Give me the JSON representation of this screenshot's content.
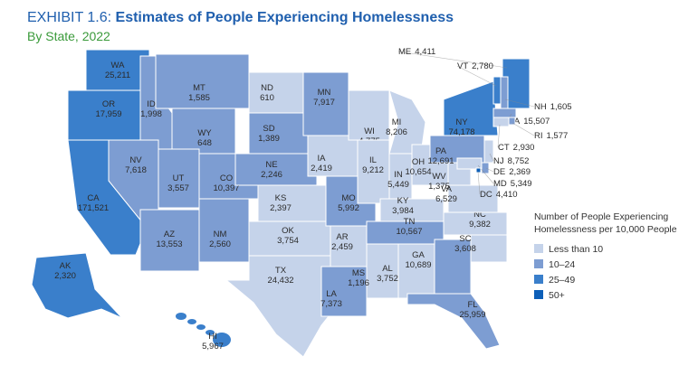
{
  "header": {
    "prefix": "EXHIBIT 1.6:",
    "title": "Estimates of People Experiencing Homelessness",
    "subtitle": "By State, 2022"
  },
  "legend": {
    "title_lines": [
      "Number of People Experiencing",
      "Homelessness per 10,000 People"
    ],
    "items": [
      {
        "label": "Less than 10",
        "color": "#c5d3ea"
      },
      {
        "label": "10–24",
        "color": "#7d9dd2"
      },
      {
        "label": "25–49",
        "color": "#3a7fcb"
      },
      {
        "label": "50+",
        "color": "#0d5fb8"
      }
    ]
  },
  "states": [
    {
      "abbr": "WA",
      "value": "25,211",
      "color": "#3a7fcb"
    },
    {
      "abbr": "OR",
      "value": "17,959",
      "color": "#3a7fcb"
    },
    {
      "abbr": "CA",
      "value": "171,521",
      "color": "#3a7fcb"
    },
    {
      "abbr": "ID",
      "value": "1,998",
      "color": "#7d9dd2"
    },
    {
      "abbr": "MT",
      "value": "1,585",
      "color": "#7d9dd2"
    },
    {
      "abbr": "WY",
      "value": "648",
      "color": "#7d9dd2"
    },
    {
      "abbr": "NV",
      "value": "7,618",
      "color": "#7d9dd2"
    },
    {
      "abbr": "UT",
      "value": "3,557",
      "color": "#7d9dd2"
    },
    {
      "abbr": "CO",
      "value": "10,397",
      "color": "#7d9dd2"
    },
    {
      "abbr": "AZ",
      "value": "13,553",
      "color": "#7d9dd2"
    },
    {
      "abbr": "NM",
      "value": "2,560",
      "color": "#7d9dd2"
    },
    {
      "abbr": "ND",
      "value": "610",
      "color": "#c5d3ea"
    },
    {
      "abbr": "SD",
      "value": "1,389",
      "color": "#7d9dd2"
    },
    {
      "abbr": "NE",
      "value": "2,246",
      "color": "#7d9dd2"
    },
    {
      "abbr": "KS",
      "value": "2,397",
      "color": "#c5d3ea"
    },
    {
      "abbr": "OK",
      "value": "3,754",
      "color": "#c5d3ea"
    },
    {
      "abbr": "TX",
      "value": "24,432",
      "color": "#c5d3ea"
    },
    {
      "abbr": "MN",
      "value": "7,917",
      "color": "#7d9dd2"
    },
    {
      "abbr": "IA",
      "value": "2,419",
      "color": "#c5d3ea"
    },
    {
      "abbr": "MO",
      "value": "5,992",
      "color": "#7d9dd2"
    },
    {
      "abbr": "AR",
      "value": "2,459",
      "color": "#c5d3ea"
    },
    {
      "abbr": "LA",
      "value": "7,373",
      "color": "#7d9dd2"
    },
    {
      "abbr": "WI",
      "value": "4,775",
      "color": "#c5d3ea"
    },
    {
      "abbr": "IL",
      "value": "9,212",
      "color": "#c5d3ea"
    },
    {
      "abbr": "MI",
      "value": "8,206",
      "color": "#c5d3ea"
    },
    {
      "abbr": "IN",
      "value": "5,449",
      "color": "#c5d3ea"
    },
    {
      "abbr": "OH",
      "value": "10,654",
      "color": "#c5d3ea"
    },
    {
      "abbr": "KY",
      "value": "3,984",
      "color": "#c5d3ea"
    },
    {
      "abbr": "TN",
      "value": "10,567",
      "color": "#7d9dd2"
    },
    {
      "abbr": "MS",
      "value": "1,196",
      "color": "#c5d3ea"
    },
    {
      "abbr": "AL",
      "value": "3,752",
      "color": "#c5d3ea"
    },
    {
      "abbr": "GA",
      "value": "10,689",
      "color": "#7d9dd2"
    },
    {
      "abbr": "FL",
      "value": "25,959",
      "color": "#7d9dd2"
    },
    {
      "abbr": "SC",
      "value": "3,608",
      "color": "#c5d3ea"
    },
    {
      "abbr": "NC",
      "value": "9,382",
      "color": "#c5d3ea"
    },
    {
      "abbr": "VA",
      "value": "6,529",
      "color": "#c5d3ea"
    },
    {
      "abbr": "WV",
      "value": "1,375",
      "color": "#c5d3ea"
    },
    {
      "abbr": "PA",
      "value": "12,691",
      "color": "#7d9dd2"
    },
    {
      "abbr": "NY",
      "value": "74,178",
      "color": "#3a7fcb"
    },
    {
      "abbr": "ME",
      "value": "4,411",
      "color": "#3a7fcb"
    },
    {
      "abbr": "VT",
      "value": "2,780",
      "color": "#3a7fcb"
    },
    {
      "abbr": "NH",
      "value": "1,605",
      "color": "#7d9dd2"
    },
    {
      "abbr": "MA",
      "value": "15,507",
      "color": "#7d9dd2"
    },
    {
      "abbr": "RI",
      "value": "1,577",
      "color": "#7d9dd2"
    },
    {
      "abbr": "CT",
      "value": "2,930",
      "color": "#c5d3ea"
    },
    {
      "abbr": "NJ",
      "value": "8,752",
      "color": "#c5d3ea"
    },
    {
      "abbr": "DE",
      "value": "2,369",
      "color": "#7d9dd2"
    },
    {
      "abbr": "MD",
      "value": "5,349",
      "color": "#c5d3ea"
    },
    {
      "abbr": "DC",
      "value": "4,410",
      "color": "#0d5fb8"
    },
    {
      "abbr": "AK",
      "value": "2,320",
      "color": "#3a7fcb"
    },
    {
      "abbr": "HI",
      "value": "5,967",
      "color": "#3a7fcb"
    }
  ]
}
